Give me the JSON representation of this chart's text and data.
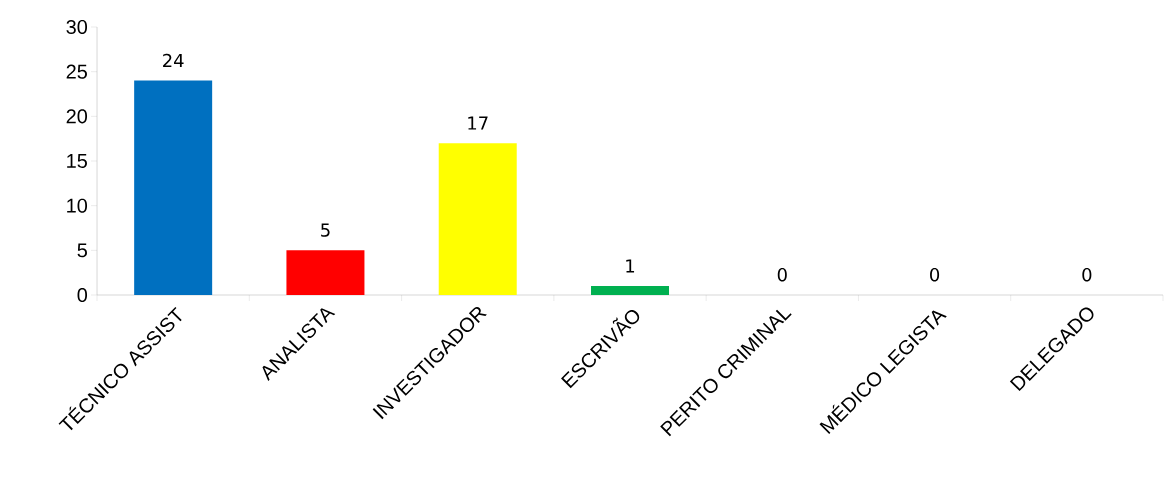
{
  "chart_data": {
    "type": "bar",
    "categories": [
      "TÉCNICO ASSIST",
      "ANALISTA",
      "INVESTIGADOR",
      "ESCRIVÃO",
      "PERITO CRIMINAL",
      "MÉDICO LEGISTA",
      "DELEGADO"
    ],
    "values": [
      24,
      5,
      17,
      1,
      0,
      0,
      0
    ],
    "colors": [
      "#0070c0",
      "#ff0000",
      "#ffff00",
      "#00b050",
      "#a5a5a5",
      "#a5a5a5",
      "#a5a5a5"
    ],
    "ylim": [
      0,
      30
    ],
    "yticks": [
      0,
      5,
      10,
      15,
      20,
      25,
      30
    ],
    "data_labels": true
  }
}
